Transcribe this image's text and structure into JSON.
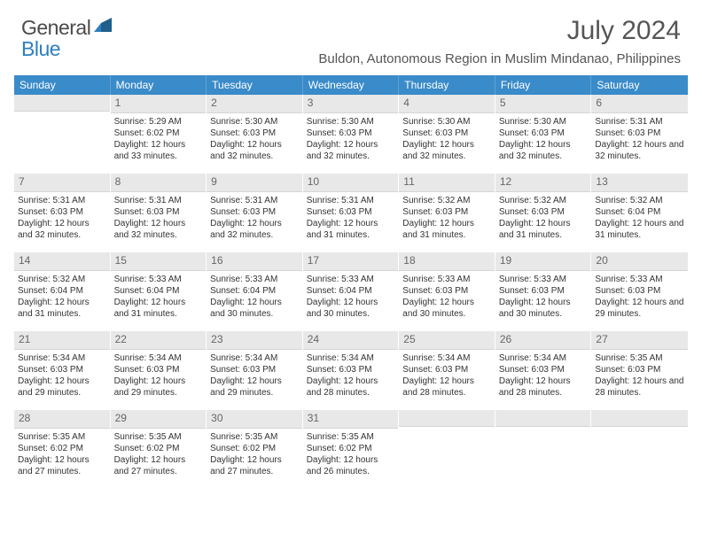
{
  "brand": {
    "part1": "General",
    "part2": "Blue"
  },
  "title": "July 2024",
  "location": "Buldon, Autonomous Region in Muslim Mindanao, Philippines",
  "colors": {
    "header_bg": "#3a8bc9",
    "header_text": "#ffffff",
    "daynum_bg": "#e8e8e8",
    "daynum_text": "#666666",
    "body_text": "#333333",
    "brand_gray": "#4a4a4a",
    "brand_blue": "#2d7fc1"
  },
  "dow": [
    "Sunday",
    "Monday",
    "Tuesday",
    "Wednesday",
    "Thursday",
    "Friday",
    "Saturday"
  ],
  "weeks": [
    [
      {
        "n": "",
        "sr": "",
        "ss": "",
        "dl": ""
      },
      {
        "n": "1",
        "sr": "Sunrise: 5:29 AM",
        "ss": "Sunset: 6:02 PM",
        "dl": "Daylight: 12 hours and 33 minutes."
      },
      {
        "n": "2",
        "sr": "Sunrise: 5:30 AM",
        "ss": "Sunset: 6:03 PM",
        "dl": "Daylight: 12 hours and 32 minutes."
      },
      {
        "n": "3",
        "sr": "Sunrise: 5:30 AM",
        "ss": "Sunset: 6:03 PM",
        "dl": "Daylight: 12 hours and 32 minutes."
      },
      {
        "n": "4",
        "sr": "Sunrise: 5:30 AM",
        "ss": "Sunset: 6:03 PM",
        "dl": "Daylight: 12 hours and 32 minutes."
      },
      {
        "n": "5",
        "sr": "Sunrise: 5:30 AM",
        "ss": "Sunset: 6:03 PM",
        "dl": "Daylight: 12 hours and 32 minutes."
      },
      {
        "n": "6",
        "sr": "Sunrise: 5:31 AM",
        "ss": "Sunset: 6:03 PM",
        "dl": "Daylight: 12 hours and 32 minutes."
      }
    ],
    [
      {
        "n": "7",
        "sr": "Sunrise: 5:31 AM",
        "ss": "Sunset: 6:03 PM",
        "dl": "Daylight: 12 hours and 32 minutes."
      },
      {
        "n": "8",
        "sr": "Sunrise: 5:31 AM",
        "ss": "Sunset: 6:03 PM",
        "dl": "Daylight: 12 hours and 32 minutes."
      },
      {
        "n": "9",
        "sr": "Sunrise: 5:31 AM",
        "ss": "Sunset: 6:03 PM",
        "dl": "Daylight: 12 hours and 32 minutes."
      },
      {
        "n": "10",
        "sr": "Sunrise: 5:31 AM",
        "ss": "Sunset: 6:03 PM",
        "dl": "Daylight: 12 hours and 31 minutes."
      },
      {
        "n": "11",
        "sr": "Sunrise: 5:32 AM",
        "ss": "Sunset: 6:03 PM",
        "dl": "Daylight: 12 hours and 31 minutes."
      },
      {
        "n": "12",
        "sr": "Sunrise: 5:32 AM",
        "ss": "Sunset: 6:03 PM",
        "dl": "Daylight: 12 hours and 31 minutes."
      },
      {
        "n": "13",
        "sr": "Sunrise: 5:32 AM",
        "ss": "Sunset: 6:04 PM",
        "dl": "Daylight: 12 hours and 31 minutes."
      }
    ],
    [
      {
        "n": "14",
        "sr": "Sunrise: 5:32 AM",
        "ss": "Sunset: 6:04 PM",
        "dl": "Daylight: 12 hours and 31 minutes."
      },
      {
        "n": "15",
        "sr": "Sunrise: 5:33 AM",
        "ss": "Sunset: 6:04 PM",
        "dl": "Daylight: 12 hours and 31 minutes."
      },
      {
        "n": "16",
        "sr": "Sunrise: 5:33 AM",
        "ss": "Sunset: 6:04 PM",
        "dl": "Daylight: 12 hours and 30 minutes."
      },
      {
        "n": "17",
        "sr": "Sunrise: 5:33 AM",
        "ss": "Sunset: 6:04 PM",
        "dl": "Daylight: 12 hours and 30 minutes."
      },
      {
        "n": "18",
        "sr": "Sunrise: 5:33 AM",
        "ss": "Sunset: 6:03 PM",
        "dl": "Daylight: 12 hours and 30 minutes."
      },
      {
        "n": "19",
        "sr": "Sunrise: 5:33 AM",
        "ss": "Sunset: 6:03 PM",
        "dl": "Daylight: 12 hours and 30 minutes."
      },
      {
        "n": "20",
        "sr": "Sunrise: 5:33 AM",
        "ss": "Sunset: 6:03 PM",
        "dl": "Daylight: 12 hours and 29 minutes."
      }
    ],
    [
      {
        "n": "21",
        "sr": "Sunrise: 5:34 AM",
        "ss": "Sunset: 6:03 PM",
        "dl": "Daylight: 12 hours and 29 minutes."
      },
      {
        "n": "22",
        "sr": "Sunrise: 5:34 AM",
        "ss": "Sunset: 6:03 PM",
        "dl": "Daylight: 12 hours and 29 minutes."
      },
      {
        "n": "23",
        "sr": "Sunrise: 5:34 AM",
        "ss": "Sunset: 6:03 PM",
        "dl": "Daylight: 12 hours and 29 minutes."
      },
      {
        "n": "24",
        "sr": "Sunrise: 5:34 AM",
        "ss": "Sunset: 6:03 PM",
        "dl": "Daylight: 12 hours and 28 minutes."
      },
      {
        "n": "25",
        "sr": "Sunrise: 5:34 AM",
        "ss": "Sunset: 6:03 PM",
        "dl": "Daylight: 12 hours and 28 minutes."
      },
      {
        "n": "26",
        "sr": "Sunrise: 5:34 AM",
        "ss": "Sunset: 6:03 PM",
        "dl": "Daylight: 12 hours and 28 minutes."
      },
      {
        "n": "27",
        "sr": "Sunrise: 5:35 AM",
        "ss": "Sunset: 6:03 PM",
        "dl": "Daylight: 12 hours and 28 minutes."
      }
    ],
    [
      {
        "n": "28",
        "sr": "Sunrise: 5:35 AM",
        "ss": "Sunset: 6:02 PM",
        "dl": "Daylight: 12 hours and 27 minutes."
      },
      {
        "n": "29",
        "sr": "Sunrise: 5:35 AM",
        "ss": "Sunset: 6:02 PM",
        "dl": "Daylight: 12 hours and 27 minutes."
      },
      {
        "n": "30",
        "sr": "Sunrise: 5:35 AM",
        "ss": "Sunset: 6:02 PM",
        "dl": "Daylight: 12 hours and 27 minutes."
      },
      {
        "n": "31",
        "sr": "Sunrise: 5:35 AM",
        "ss": "Sunset: 6:02 PM",
        "dl": "Daylight: 12 hours and 26 minutes."
      },
      {
        "n": "",
        "sr": "",
        "ss": "",
        "dl": ""
      },
      {
        "n": "",
        "sr": "",
        "ss": "",
        "dl": ""
      },
      {
        "n": "",
        "sr": "",
        "ss": "",
        "dl": ""
      }
    ]
  ]
}
